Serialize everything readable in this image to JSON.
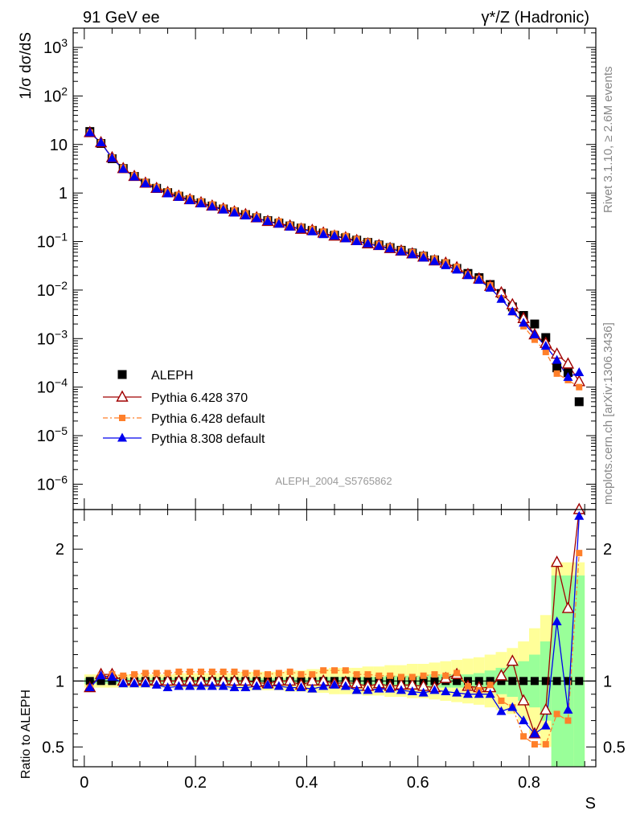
{
  "header": {
    "left_title": "91 GeV ee",
    "right_title": "γ*/Z (Hadronic)"
  },
  "side_text": {
    "rivet": "Rivet 3.1.10, ≥ 2.6M events",
    "source": "mcplots.cern.ch [arXiv:1306.3436]"
  },
  "analysis_label": "ALEPH_2004_S5765862",
  "colors": {
    "aleph": "#000000",
    "py6_370": "#a00000",
    "py6_default": "#ff7f2a",
    "py8_default": "#0000ee",
    "band_inner": "#99ff99",
    "band_outer": "#ffff99"
  },
  "chart_data": [
    {
      "type": "scatter",
      "panel": "main",
      "ylabel": "1/σ  dσ/dS",
      "yscale": "log",
      "ylim": [
        3e-07,
        2500
      ],
      "xlim": [
        -0.02,
        0.92
      ],
      "y_ticks": [
        "10^3",
        "10^2",
        "10",
        "1",
        "10^-1",
        "10^-2",
        "10^-3",
        "10^-4",
        "10^-5",
        "10^-6"
      ],
      "legend_position": "bottom-left",
      "x": [
        0.01,
        0.03,
        0.05,
        0.07,
        0.09,
        0.11,
        0.13,
        0.15,
        0.17,
        0.19,
        0.21,
        0.23,
        0.25,
        0.27,
        0.29,
        0.31,
        0.33,
        0.35,
        0.37,
        0.39,
        0.41,
        0.43,
        0.45,
        0.47,
        0.49,
        0.51,
        0.53,
        0.55,
        0.57,
        0.59,
        0.61,
        0.63,
        0.65,
        0.67,
        0.69,
        0.71,
        0.73,
        0.75,
        0.77,
        0.79,
        0.81,
        0.83,
        0.85,
        0.87,
        0.89
      ],
      "series": [
        {
          "name": "ALEPH",
          "color": "#000000",
          "marker": "square",
          "values": [
            18.5,
            10.5,
            5.1,
            3.2,
            2.2,
            1.6,
            1.25,
            1.02,
            0.86,
            0.73,
            0.63,
            0.54,
            0.47,
            0.41,
            0.36,
            0.31,
            0.27,
            0.24,
            0.21,
            0.19,
            0.17,
            0.15,
            0.135,
            0.12,
            0.107,
            0.096,
            0.085,
            0.075,
            0.066,
            0.058,
            0.05,
            0.042,
            0.035,
            0.028,
            0.022,
            0.018,
            0.013,
            0.0085,
            0.0045,
            0.003,
            0.002,
            0.00105,
            0.00025,
            0.0002,
            5e-05
          ],
          "ratio": [
            1,
            1,
            1,
            1,
            1,
            1,
            1,
            1,
            1,
            1,
            1,
            1,
            1,
            1,
            1,
            1,
            1,
            1,
            1,
            1,
            1,
            1,
            1,
            1,
            1,
            1,
            1,
            1,
            1,
            1,
            1,
            1,
            1,
            1,
            1,
            1,
            1,
            1,
            1,
            1,
            1,
            1,
            1,
            1,
            1
          ],
          "band_inner": [
            0.02,
            0.02,
            0.02,
            0.02,
            0.02,
            0.02,
            0.02,
            0.02,
            0.02,
            0.02,
            0.02,
            0.02,
            0.02,
            0.02,
            0.02,
            0.02,
            0.02,
            0.02,
            0.02,
            0.02,
            0.02,
            0.03,
            0.03,
            0.03,
            0.03,
            0.03,
            0.03,
            0.04,
            0.04,
            0.04,
            0.04,
            0.05,
            0.05,
            0.05,
            0.05,
            0.06,
            0.08,
            0.1,
            0.12,
            0.15,
            0.2,
            0.3,
            0.8,
            0.8,
            0.8
          ],
          "band_outer": [
            0.05,
            0.05,
            0.05,
            0.05,
            0.05,
            0.05,
            0.05,
            0.05,
            0.06,
            0.06,
            0.06,
            0.06,
            0.06,
            0.06,
            0.07,
            0.07,
            0.07,
            0.07,
            0.08,
            0.08,
            0.09,
            0.09,
            0.1,
            0.1,
            0.1,
            0.11,
            0.11,
            0.12,
            0.12,
            0.13,
            0.13,
            0.14,
            0.15,
            0.16,
            0.17,
            0.18,
            0.2,
            0.22,
            0.25,
            0.3,
            0.4,
            0.5,
            0.9,
            0.9,
            0.9
          ]
        },
        {
          "name": "Pythia 6.428 370",
          "color": "#a00000",
          "marker": "triangle-open",
          "values": [
            17.6,
            10.9,
            5.35,
            3.2,
            2.2,
            1.6,
            1.25,
            1.02,
            0.86,
            0.73,
            0.63,
            0.54,
            0.47,
            0.41,
            0.36,
            0.31,
            0.26,
            0.24,
            0.21,
            0.18,
            0.17,
            0.15,
            0.13,
            0.12,
            0.105,
            0.09,
            0.083,
            0.072,
            0.064,
            0.056,
            0.048,
            0.04,
            0.036,
            0.029,
            0.021,
            0.017,
            0.012,
            0.0088,
            0.005,
            0.0026,
            0.0012,
            0.0008,
            0.00048,
            0.0003,
            0.00013
          ],
          "ratio": [
            0.95,
            1.05,
            1.05,
            1.0,
            1.0,
            1.0,
            1.0,
            1.0,
            1.0,
            1.0,
            1.0,
            1.0,
            1.0,
            1.0,
            1.0,
            0.99,
            0.98,
            1.0,
            1.0,
            0.97,
            1.0,
            1.0,
            0.98,
            0.99,
            0.98,
            0.96,
            0.98,
            0.96,
            0.97,
            0.97,
            0.96,
            0.95,
            1.02,
            1.05,
            0.96,
            0.95,
            0.95,
            1.04,
            1.15,
            0.85,
            0.6,
            0.78,
            1.9,
            1.55,
            2.3
          ]
        },
        {
          "name": "Pythia 6.428 default",
          "color": "#ff7f2a",
          "marker": "square-small",
          "values": [
            17.6,
            10.9,
            5.35,
            3.33,
            2.31,
            1.7,
            1.32,
            1.08,
            0.92,
            0.78,
            0.67,
            0.58,
            0.5,
            0.44,
            0.38,
            0.33,
            0.28,
            0.26,
            0.22,
            0.2,
            0.18,
            0.16,
            0.145,
            0.13,
            0.112,
            0.1,
            0.088,
            0.078,
            0.068,
            0.06,
            0.052,
            0.044,
            0.037,
            0.03,
            0.021,
            0.017,
            0.0125,
            0.0068,
            0.0035,
            0.0018,
            0.00095,
            0.00053,
            0.00019,
            0.00014,
            0.0001
          ],
          "ratio": [
            0.95,
            1.04,
            1.05,
            1.04,
            1.05,
            1.06,
            1.06,
            1.06,
            1.07,
            1.07,
            1.07,
            1.07,
            1.07,
            1.07,
            1.06,
            1.06,
            1.05,
            1.06,
            1.07,
            1.05,
            1.05,
            1.08,
            1.08,
            1.08,
            1.05,
            1.05,
            1.04,
            1.04,
            1.03,
            1.03,
            1.04,
            1.05,
            1.04,
            1.06,
            0.96,
            0.93,
            0.97,
            0.85,
            0.8,
            0.58,
            0.52,
            0.52,
            0.75,
            0.7,
            1.97
          ]
        },
        {
          "name": "Pythia 8.308 default",
          "color": "#0000ee",
          "marker": "triangle-filled",
          "values": [
            17.6,
            10.9,
            5.2,
            3.12,
            2.15,
            1.56,
            1.22,
            0.97,
            0.82,
            0.7,
            0.6,
            0.52,
            0.45,
            0.39,
            0.34,
            0.3,
            0.26,
            0.23,
            0.2,
            0.18,
            0.16,
            0.14,
            0.13,
            0.115,
            0.1,
            0.09,
            0.08,
            0.071,
            0.062,
            0.054,
            0.046,
            0.039,
            0.032,
            0.026,
            0.02,
            0.016,
            0.011,
            0.0065,
            0.0036,
            0.0021,
            0.0012,
            0.0007,
            0.00036,
            0.00016,
            0.0002
          ],
          "ratio": [
            0.95,
            1.04,
            1.03,
            0.98,
            0.98,
            0.98,
            0.97,
            0.95,
            0.96,
            0.96,
            0.96,
            0.96,
            0.96,
            0.95,
            0.95,
            0.96,
            0.97,
            0.96,
            0.95,
            0.95,
            0.94,
            0.96,
            0.97,
            0.96,
            0.93,
            0.93,
            0.94,
            0.94,
            0.93,
            0.92,
            0.91,
            0.93,
            0.92,
            0.91,
            0.9,
            0.9,
            0.9,
            0.77,
            0.8,
            0.7,
            0.6,
            0.66,
            1.45,
            0.78,
            2.25
          ]
        }
      ]
    },
    {
      "type": "scatter",
      "panel": "ratio",
      "ylabel": "Ratio to ALEPH",
      "xlabel": "S",
      "ylim": [
        0.35,
        2.3
      ],
      "xlim": [
        -0.02,
        0.92
      ],
      "y_ticks": [
        "0.5",
        "1",
        "2"
      ],
      "x_ticks": [
        "0",
        "0.2",
        "0.4",
        "0.6",
        "0.8"
      ]
    }
  ]
}
